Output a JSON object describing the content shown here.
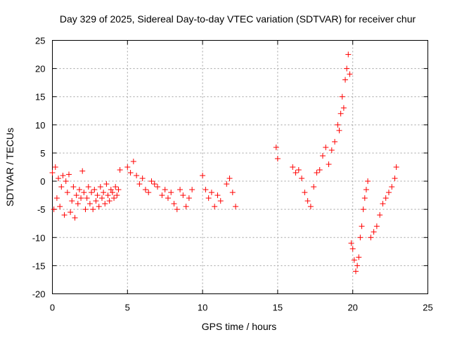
{
  "chart_data": {
    "type": "scatter",
    "title": "Day 329 of 2025, Sidereal Day-to-day VTEC variation (SDTVAR) for receiver chur",
    "xlabel": "GPS time / hours",
    "ylabel": "SDTVAR / TECUs",
    "xlim": [
      0,
      25
    ],
    "ylim": [
      -20,
      25
    ],
    "xticks": [
      "0",
      "5",
      "10",
      "15",
      "20",
      "25"
    ],
    "yticks": [
      "-20",
      "-15",
      "-10",
      "-5",
      "0",
      "5",
      "10",
      "15",
      "20",
      "25"
    ],
    "grid": true,
    "marker": "+",
    "color": "#ff0000",
    "series": [
      {
        "name": "SDTVAR",
        "x": [
          0.0,
          0.1,
          0.2,
          0.3,
          0.4,
          0.5,
          0.6,
          0.7,
          0.8,
          0.9,
          1.0,
          1.1,
          1.2,
          1.3,
          1.4,
          1.5,
          1.6,
          1.7,
          1.8,
          1.9,
          2.0,
          2.1,
          2.2,
          2.3,
          2.4,
          2.5,
          2.6,
          2.7,
          2.8,
          2.9,
          3.0,
          3.1,
          3.2,
          3.3,
          3.4,
          3.5,
          3.6,
          3.7,
          3.8,
          3.9,
          4.0,
          4.1,
          4.2,
          4.3,
          4.4,
          4.5,
          5.0,
          5.2,
          5.4,
          5.6,
          5.8,
          6.0,
          6.2,
          6.4,
          6.6,
          6.8,
          7.0,
          7.3,
          7.5,
          7.7,
          7.9,
          8.1,
          8.3,
          8.5,
          8.7,
          8.9,
          9.1,
          9.3,
          10.0,
          10.2,
          10.4,
          10.6,
          10.8,
          11.0,
          11.2,
          11.6,
          11.8,
          12.0,
          12.2,
          14.9,
          15.0,
          16.0,
          16.2,
          16.4,
          16.6,
          16.8,
          17.0,
          17.2,
          17.4,
          17.6,
          17.8,
          18.0,
          18.2,
          18.4,
          18.6,
          18.8,
          19.0,
          19.1,
          19.2,
          19.3,
          19.4,
          19.5,
          19.6,
          19.7,
          19.8,
          19.9,
          20.0,
          20.1,
          20.2,
          20.3,
          20.4,
          20.5,
          20.6,
          20.7,
          20.8,
          20.9,
          21.0,
          21.2,
          21.4,
          21.6,
          21.8,
          22.0,
          22.2,
          22.4,
          22.6,
          22.8,
          22.9
        ],
        "y": [
          1.5,
          -5.0,
          2.5,
          -3.0,
          0.5,
          -4.5,
          -1.0,
          1.0,
          -6.0,
          0.0,
          -2.0,
          1.2,
          -5.5,
          -3.5,
          -1.0,
          -6.5,
          -2.5,
          -4.0,
          -1.5,
          -3.0,
          1.8,
          -2.0,
          -5.0,
          -3.0,
          -1.0,
          -4.0,
          -2.0,
          -5.0,
          -1.5,
          -3.5,
          -2.5,
          -4.5,
          -1.0,
          -3.0,
          -2.0,
          -4.0,
          -0.5,
          -2.5,
          -3.5,
          -1.5,
          -2.0,
          -3.0,
          -1.0,
          -2.5,
          -1.5,
          2.0,
          2.5,
          1.5,
          3.5,
          1.0,
          -0.5,
          0.5,
          -1.5,
          -2.0,
          0.0,
          -0.5,
          -1.0,
          -2.5,
          -1.5,
          -3.0,
          -2.0,
          -4.0,
          -5.0,
          -1.5,
          -2.5,
          -4.5,
          -3.0,
          -1.5,
          1.0,
          -1.5,
          -3.0,
          -2.0,
          -4.5,
          -2.5,
          -3.5,
          -0.5,
          0.5,
          -2.0,
          -4.5,
          6.0,
          4.0,
          2.5,
          1.5,
          2.0,
          0.5,
          -2.0,
          -3.5,
          -4.5,
          -1.0,
          1.5,
          2.0,
          4.5,
          6.0,
          3.0,
          5.5,
          7.0,
          10.0,
          9.0,
          12.0,
          15.0,
          13.0,
          18.0,
          20.0,
          22.5,
          19.0,
          -11.0,
          -12.0,
          -14.0,
          -16.0,
          -15.0,
          -13.5,
          -10.0,
          -8.0,
          -5.0,
          -3.0,
          -1.5,
          0.0,
          -10.0,
          -9.0,
          -8.0,
          -6.0,
          -4.0,
          -3.0,
          -2.0,
          -1.0,
          0.5,
          2.5
        ]
      }
    ]
  }
}
